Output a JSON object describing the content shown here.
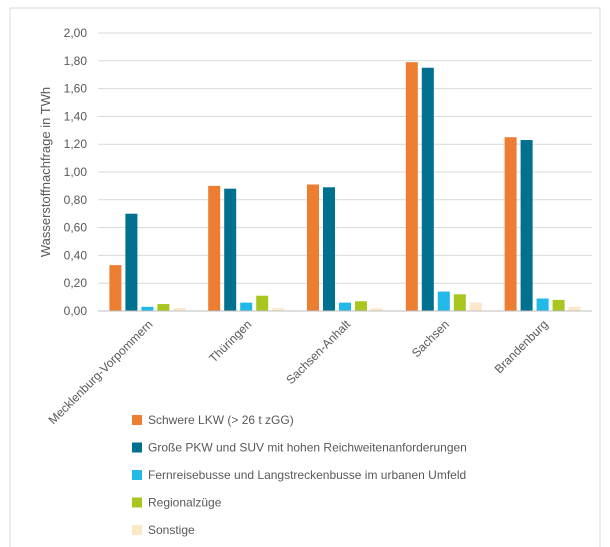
{
  "chart_data": {
    "type": "bar",
    "title": "",
    "xlabel": "",
    "ylabel": "Wasserstoffnachfrage in TWh",
    "ylim": [
      0,
      2
    ],
    "yticks": [
      "0,00",
      "0,20",
      "0,40",
      "0,60",
      "0,80",
      "1,00",
      "1,20",
      "1,40",
      "1,60",
      "1,80",
      "2,00"
    ],
    "grid": "horizontal",
    "legend_position": "bottom",
    "categories": [
      "Mecklenburg-Vorpommern",
      "Thüringen",
      "Sachsen-Anhalt",
      "Sachsen",
      "Brandenburg"
    ],
    "series": [
      {
        "name": "Schwere LKW (> 26 t zGG)",
        "color": "#ED7D31",
        "values": [
          0.33,
          0.9,
          0.91,
          1.79,
          1.25
        ]
      },
      {
        "name": "Große PKW und SUV mit hohen Reichweitenanforderungen",
        "color": "#00708F",
        "values": [
          0.7,
          0.88,
          0.89,
          1.75,
          1.23
        ]
      },
      {
        "name": "Fernreisebusse und Langstreckenbusse im urbanen Umfeld",
        "color": "#22B8E8",
        "values": [
          0.03,
          0.06,
          0.06,
          0.14,
          0.09
        ]
      },
      {
        "name": "Regionalzüge",
        "color": "#A9C520",
        "values": [
          0.05,
          0.11,
          0.07,
          0.12,
          0.08
        ]
      },
      {
        "name": "Sonstige",
        "color": "#FCE7C9",
        "values": [
          0.02,
          0.02,
          0.02,
          0.06,
          0.03
        ]
      }
    ]
  }
}
